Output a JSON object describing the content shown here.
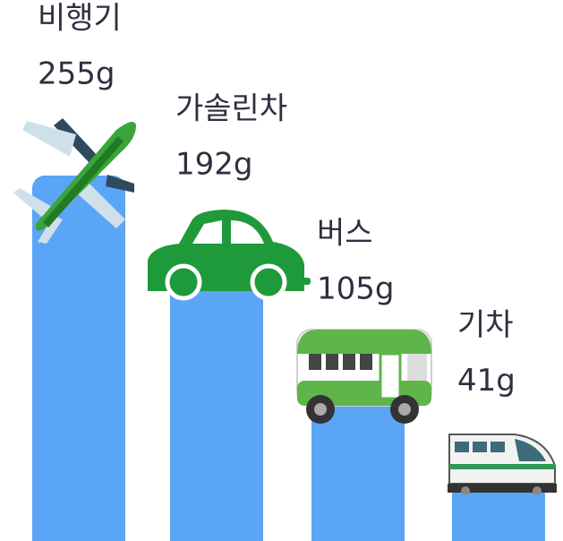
{
  "chart_data": {
    "type": "bar",
    "categories": [
      "비행기",
      "가솔린차",
      "버스",
      "기차"
    ],
    "values": [
      255,
      192,
      105,
      41
    ],
    "value_labels": [
      "255g",
      "192g",
      "105g",
      "41g"
    ],
    "color": "#5aa5f5"
  }
}
